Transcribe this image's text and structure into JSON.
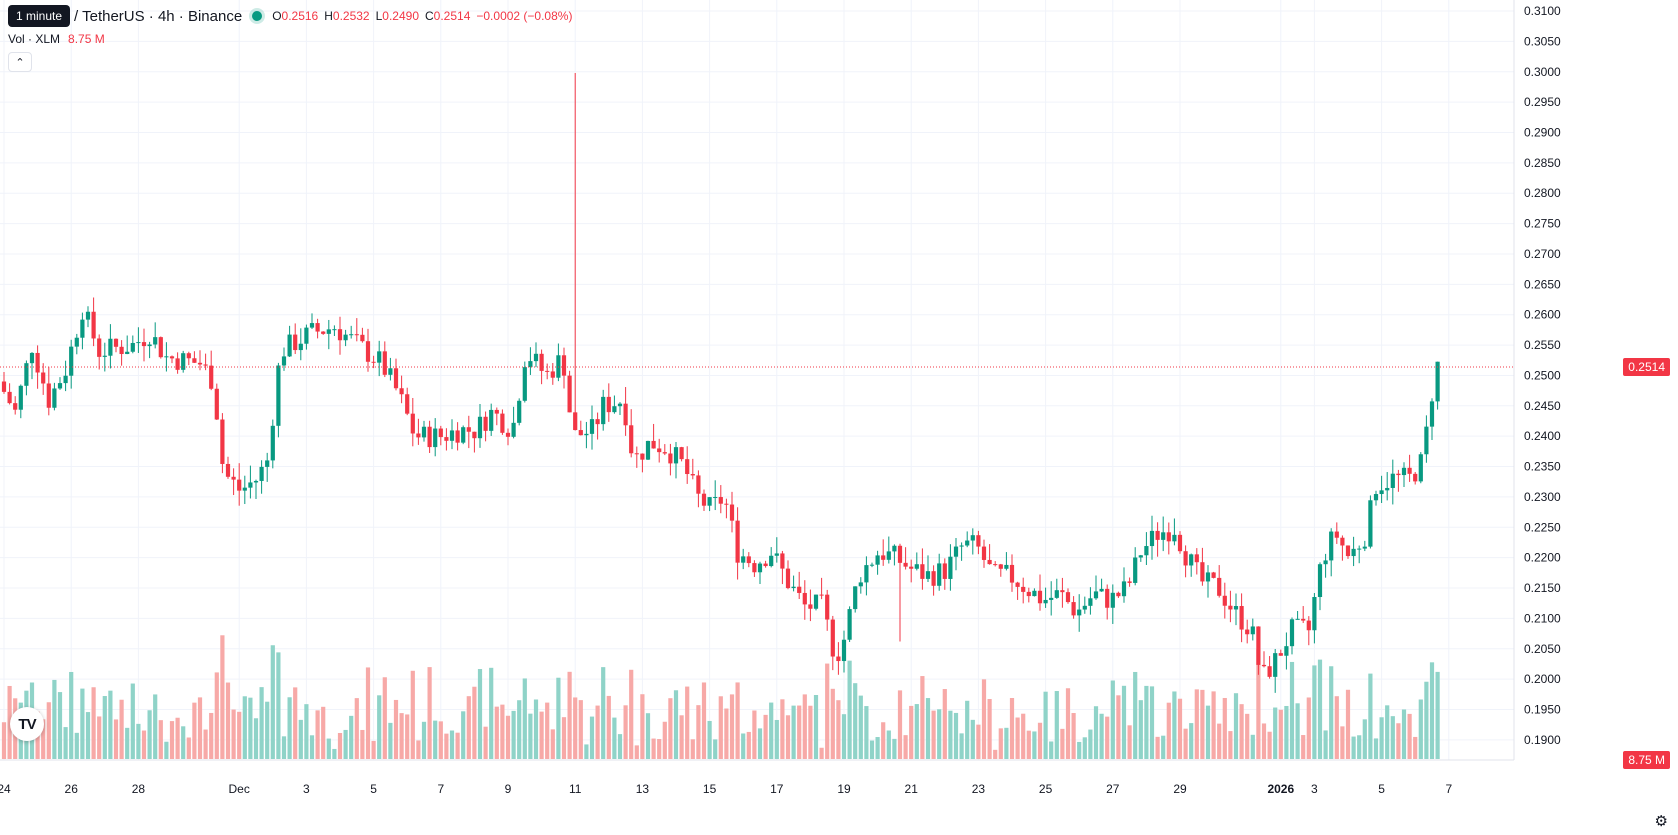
{
  "header": {
    "tooltip": "1 minute",
    "symbol": "/ TetherUS · 4h · Binance",
    "o_label": "O",
    "o_value": "0.2516",
    "h_label": "H",
    "h_value": "0.2532",
    "l_label": "L",
    "l_value": "0.2490",
    "c_label": "C",
    "c_value": "0.2514",
    "change": "−0.0002 (−0.08%)"
  },
  "volume_legend": {
    "label": "Vol · XLM",
    "value": "8.75 M"
  },
  "collapse_icon": "chevron-up-icon",
  "last_price_label": "0.2514",
  "last_volume_label": "8.75 M",
  "logo_text": "TV",
  "settings_icon": "gear-icon",
  "colors": {
    "up": "#089981",
    "down": "#f23645",
    "up_volume": "#8fd3c8",
    "down_volume": "#f7a9a7"
  },
  "chart_data": {
    "type": "candlestick",
    "y_axis": {
      "range": [
        0.188,
        0.3105
      ],
      "ticks": [
        "0.3100",
        "0.3050",
        "0.3000",
        "0.2950",
        "0.2900",
        "0.2850",
        "0.2800",
        "0.2750",
        "0.2700",
        "0.2650",
        "0.2600",
        "0.2550",
        "0.2500",
        "0.2450",
        "0.2400",
        "0.2350",
        "0.2300",
        "0.2250",
        "0.2200",
        "0.2150",
        "0.2100",
        "0.2050",
        "0.2000",
        "0.1950",
        "0.1900"
      ]
    },
    "x_axis": {
      "ticks": [
        {
          "label": "24",
          "day": 0
        },
        {
          "label": "26",
          "day": 2
        },
        {
          "label": "28",
          "day": 4
        },
        {
          "label": "Dec",
          "day": 7
        },
        {
          "label": "3",
          "day": 9
        },
        {
          "label": "5",
          "day": 11
        },
        {
          "label": "7",
          "day": 13
        },
        {
          "label": "9",
          "day": 15
        },
        {
          "label": "11",
          "day": 17
        },
        {
          "label": "13",
          "day": 19
        },
        {
          "label": "15",
          "day": 21
        },
        {
          "label": "17",
          "day": 23
        },
        {
          "label": "19",
          "day": 25
        },
        {
          "label": "21",
          "day": 27
        },
        {
          "label": "23",
          "day": 29
        },
        {
          "label": "25",
          "day": 31
        },
        {
          "label": "27",
          "day": 33
        },
        {
          "label": "29",
          "day": 35
        },
        {
          "label": "2026",
          "day": 38,
          "bold": true
        },
        {
          "label": "3",
          "day": 39
        },
        {
          "label": "5",
          "day": 41
        },
        {
          "label": "7",
          "day": 43
        }
      ]
    },
    "key_days": [
      {
        "day": 0,
        "price": 0.249
      },
      {
        "day": 0.5,
        "price": 0.244
      },
      {
        "day": 1,
        "price": 0.255
      },
      {
        "day": 1.5,
        "price": 0.246
      },
      {
        "day": 2,
        "price": 0.251
      },
      {
        "day": 2.5,
        "price": 0.261
      },
      {
        "day": 3,
        "price": 0.254
      },
      {
        "day": 4,
        "price": 0.255
      },
      {
        "day": 4.5,
        "price": 0.257
      },
      {
        "day": 5,
        "price": 0.253
      },
      {
        "day": 6,
        "price": 0.252
      },
      {
        "day": 6.4,
        "price": 0.249
      },
      {
        "day": 6.7,
        "price": 0.234
      },
      {
        "day": 7.2,
        "price": 0.231
      },
      {
        "day": 7.7,
        "price": 0.233
      },
      {
        "day": 8,
        "price": 0.236
      },
      {
        "day": 8.4,
        "price": 0.254
      },
      {
        "day": 9.3,
        "price": 0.257
      },
      {
        "day": 10,
        "price": 0.258
      },
      {
        "day": 10.7,
        "price": 0.255
      },
      {
        "day": 11.4,
        "price": 0.252
      },
      {
        "day": 11.9,
        "price": 0.247
      },
      {
        "day": 12.4,
        "price": 0.24
      },
      {
        "day": 13.2,
        "price": 0.24
      },
      {
        "day": 13.7,
        "price": 0.241
      },
      {
        "day": 14.2,
        "price": 0.241
      },
      {
        "day": 14.7,
        "price": 0.244
      },
      {
        "day": 15.3,
        "price": 0.241
      },
      {
        "day": 15.7,
        "price": 0.254
      },
      {
        "day": 16.3,
        "price": 0.25
      },
      {
        "day": 16.8,
        "price": 0.253
      },
      {
        "day": 17.1,
        "price": 0.24
      },
      {
        "day": 17.7,
        "price": 0.241
      },
      {
        "day": 18,
        "price": 0.245
      },
      {
        "day": 18.6,
        "price": 0.246
      },
      {
        "day": 18.9,
        "price": 0.236
      },
      {
        "day": 19.4,
        "price": 0.239
      },
      {
        "day": 19.9,
        "price": 0.238
      },
      {
        "day": 20.4,
        "price": 0.235
      },
      {
        "day": 20.8,
        "price": 0.23
      },
      {
        "day": 21.2,
        "price": 0.228
      },
      {
        "day": 21.6,
        "price": 0.23
      },
      {
        "day": 22,
        "price": 0.221
      },
      {
        "day": 22.5,
        "price": 0.219
      },
      {
        "day": 23,
        "price": 0.221
      },
      {
        "day": 23.5,
        "price": 0.216
      },
      {
        "day": 24,
        "price": 0.212
      },
      {
        "day": 24.5,
        "price": 0.212
      },
      {
        "day": 24.9,
        "price": 0.204
      },
      {
        "day": 25.1,
        "price": 0.205
      },
      {
        "day": 25.6,
        "price": 0.217
      },
      {
        "day": 26.2,
        "price": 0.221
      },
      {
        "day": 26.7,
        "price": 0.22
      },
      {
        "day": 27.2,
        "price": 0.218
      },
      {
        "day": 27.7,
        "price": 0.217
      },
      {
        "day": 28.2,
        "price": 0.218
      },
      {
        "day": 28.7,
        "price": 0.222
      },
      {
        "day": 29.1,
        "price": 0.222
      },
      {
        "day": 29.6,
        "price": 0.217
      },
      {
        "day": 30.1,
        "price": 0.217
      },
      {
        "day": 30.6,
        "price": 0.215
      },
      {
        "day": 31.1,
        "price": 0.213
      },
      {
        "day": 31.6,
        "price": 0.214
      },
      {
        "day": 32.1,
        "price": 0.211
      },
      {
        "day": 32.6,
        "price": 0.214
      },
      {
        "day": 33.1,
        "price": 0.213
      },
      {
        "day": 33.6,
        "price": 0.215
      },
      {
        "day": 34,
        "price": 0.221
      },
      {
        "day": 34.5,
        "price": 0.224
      },
      {
        "day": 35,
        "price": 0.225
      },
      {
        "day": 35.3,
        "price": 0.221
      },
      {
        "day": 35.8,
        "price": 0.216
      },
      {
        "day": 36.3,
        "price": 0.215
      },
      {
        "day": 36.8,
        "price": 0.211
      },
      {
        "day": 37.3,
        "price": 0.208
      },
      {
        "day": 37.6,
        "price": 0.2
      },
      {
        "day": 38,
        "price": 0.203
      },
      {
        "day": 38.5,
        "price": 0.208
      },
      {
        "day": 39,
        "price": 0.208
      },
      {
        "day": 39.4,
        "price": 0.22
      },
      {
        "day": 39.8,
        "price": 0.224
      },
      {
        "day": 40.2,
        "price": 0.22
      },
      {
        "day": 40.7,
        "price": 0.224
      },
      {
        "day": 41,
        "price": 0.232
      },
      {
        "day": 41.5,
        "price": 0.233
      },
      {
        "day": 42,
        "price": 0.233
      },
      {
        "day": 42.4,
        "price": 0.236
      },
      {
        "day": 42.6,
        "price": 0.245
      },
      {
        "day": 42.8,
        "price": 0.2516
      }
    ],
    "spikes": [
      {
        "day": 17,
        "high": 0.2998
      },
      {
        "day": 26.7,
        "low": 0.2062
      }
    ],
    "last_price": 0.2514,
    "volume": {
      "range_max_millions": 25,
      "last_value_millions": 8.75
    }
  }
}
